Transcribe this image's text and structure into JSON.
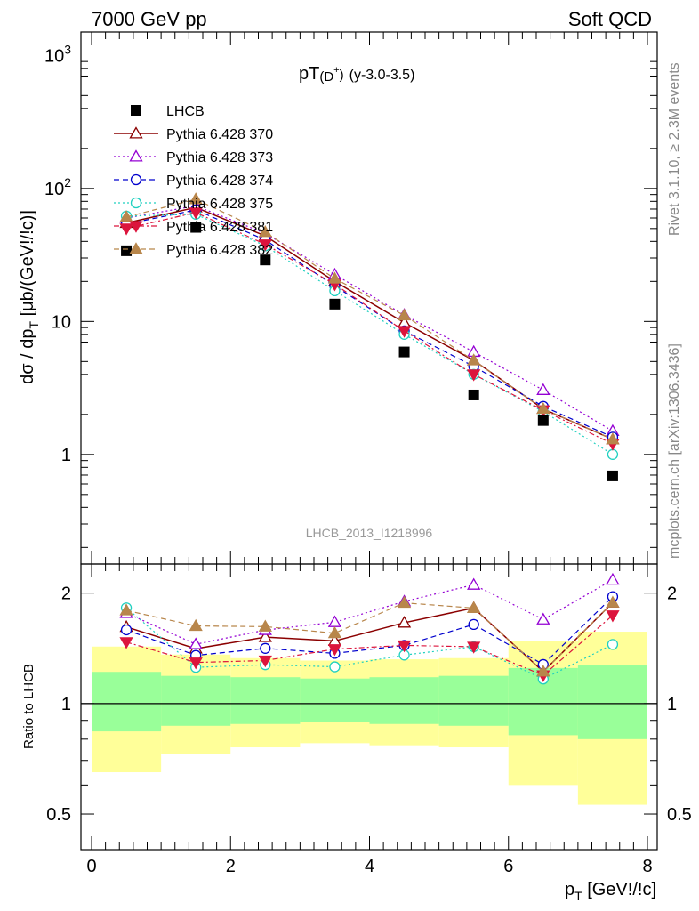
{
  "header": {
    "left": "7000 GeV pp",
    "right": "Soft QCD"
  },
  "side_labels": {
    "rivet": "Rivet 3.1.10, ≥ 2.3M events",
    "mcplots": "mcplots.cern.ch [arXiv:1306.3436]"
  },
  "chart_data": {
    "type": "scatter",
    "title": {
      "main": "pT",
      "sub": "(D",
      "sup": "+",
      "close": ")",
      "range": "(y-3.0-3.5)"
    },
    "analysis": "LHCB_2013_I1218996",
    "xlabel": {
      "main": "p",
      "sub": "T",
      "rest": " [GeV!/!c]"
    },
    "ylabel": {
      "pre": "dσ / dp",
      "sub": "T",
      "post": " [μb/(GeV!/!c)]"
    },
    "ratio_ylabel": "Ratio to LHCB",
    "xlim": [
      0,
      8
    ],
    "ylim": [
      0.15,
      1500
    ],
    "yscale": "log",
    "ratio_ylim": [
      0.4,
      2.4
    ],
    "ratio_yscale": "log",
    "x_ticks": [
      "0",
      "2",
      "4",
      "6",
      "8"
    ],
    "y_ticks": [
      {
        "v": 1,
        "base": "1"
      },
      {
        "v": 10,
        "base": "10"
      },
      {
        "v": 100,
        "base": "10",
        "exp": "2"
      },
      {
        "v": 1000,
        "base": "10",
        "exp": "3"
      }
    ],
    "ratio_ticks": [
      {
        "v": 0.5,
        "label": "0.5"
      },
      {
        "v": 1,
        "label": "1"
      },
      {
        "v": 2,
        "label": "2"
      }
    ],
    "x": [
      0.5,
      1.5,
      2.5,
      3.5,
      4.5,
      5.5,
      6.5,
      7.5
    ],
    "bin_edges": [
      0,
      1,
      2,
      3,
      4,
      5,
      6,
      7,
      8
    ],
    "data": {
      "name": "LHCB",
      "values": [
        34,
        51,
        29,
        13.5,
        5.9,
        2.8,
        1.8,
        0.69
      ]
    },
    "uncertainty_band": {
      "inner": [
        [
          0.84,
          1.22
        ],
        [
          0.87,
          1.19
        ],
        [
          0.88,
          1.18
        ],
        [
          0.89,
          1.17
        ],
        [
          0.88,
          1.18
        ],
        [
          0.87,
          1.19
        ],
        [
          0.82,
          1.25
        ],
        [
          0.8,
          1.27
        ]
      ],
      "outer": [
        [
          0.65,
          1.43
        ],
        [
          0.73,
          1.36
        ],
        [
          0.76,
          1.33
        ],
        [
          0.78,
          1.31
        ],
        [
          0.77,
          1.32
        ],
        [
          0.76,
          1.33
        ],
        [
          0.6,
          1.48
        ],
        [
          0.53,
          1.57
        ]
      ],
      "inner_color": "#99ff99",
      "outer_color": "#ffff99"
    },
    "series": [
      {
        "name": "Pythia 6.428 370",
        "values": [
          55,
          72,
          44,
          20,
          9.8,
          5.1,
          2.2,
          1.3
        ],
        "color": "#8b0000",
        "marker": "triangle-up-open",
        "dash": "",
        "stroke": 1.5
      },
      {
        "name": "Pythia 6.428 373",
        "values": [
          60,
          74,
          46,
          22.5,
          11.2,
          5.9,
          3.05,
          1.5
        ],
        "color": "#9400d3",
        "marker": "triangle-up-open",
        "dash": "2,3",
        "stroke": 1.2
      },
      {
        "name": "Pythia 6.428 374",
        "values": [
          54,
          69,
          41,
          18.5,
          8.5,
          4.6,
          2.3,
          1.35
        ],
        "color": "#0000cd",
        "marker": "circle-open",
        "dash": "6,4",
        "stroke": 1.2
      },
      {
        "name": "Pythia 6.428 375",
        "values": [
          62,
          64,
          37,
          17,
          8,
          4,
          2.1,
          1.0
        ],
        "color": "#20d0c0",
        "marker": "circle-open",
        "dash": "2,3",
        "stroke": 1.2
      },
      {
        "name": "Pythia 6.428 381",
        "values": [
          50,
          66,
          38,
          19,
          8.5,
          4,
          2.15,
          1.2
        ],
        "color": "#dc143c",
        "marker": "triangle-down-filled",
        "dash": "6,3,2,3",
        "stroke": 1.2
      },
      {
        "name": "Pythia 6.428 382",
        "values": [
          61,
          83,
          47,
          21,
          11.1,
          5.1,
          2.2,
          1.3
        ],
        "color": "#b8864b",
        "marker": "triangle-up-filled",
        "dash": "6,4",
        "stroke": 1.2
      }
    ]
  }
}
